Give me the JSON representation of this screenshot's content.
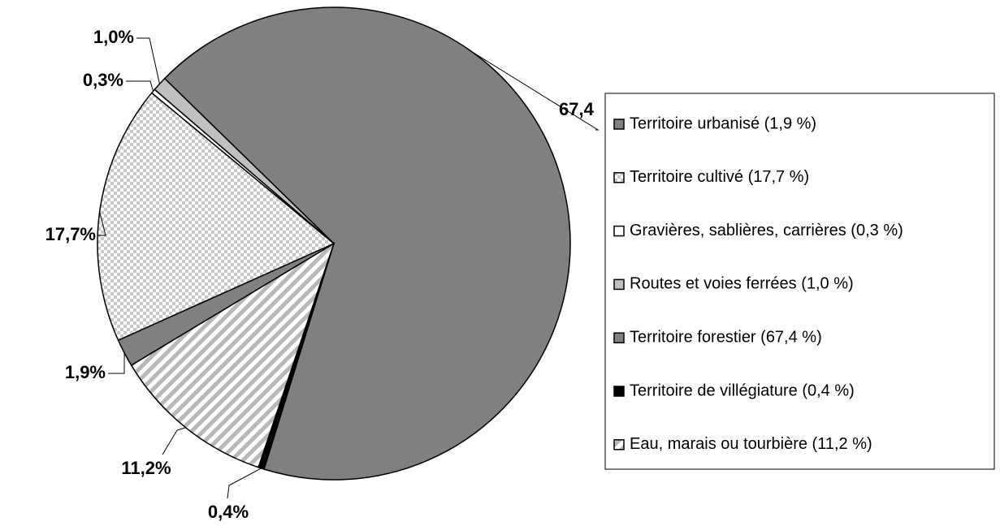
{
  "chart_data": {
    "type": "pie",
    "categories": [
      "Territoire urbanisé (1,9 %)",
      "Territoire cultivé (17,7 %)",
      "Gravières, sablières, carrières (0,3 %)",
      "Routes et voies ferrées (1,0 %)",
      "Territoire forestier (67,4 %)",
      "Territoire de villégiature (0,4 %)",
      "Eau, marais ou tourbière (11,2 %)"
    ],
    "values": [
      1.9,
      17.7,
      0.3,
      1.0,
      67.4,
      0.4,
      11.2
    ],
    "value_labels": [
      "1,9%",
      "17,7%",
      "0,3%",
      "1,0%",
      "67,4",
      "0,4%",
      "11,2%"
    ],
    "colors": [
      "#808080",
      "#c0c0c0",
      "#ffffff",
      "#c0c0c0",
      "#808080",
      "#000000",
      "#c0c0c0"
    ],
    "patterns": [
      null,
      "checker",
      null,
      null,
      null,
      null,
      "diagonal"
    ],
    "legend": "right"
  }
}
